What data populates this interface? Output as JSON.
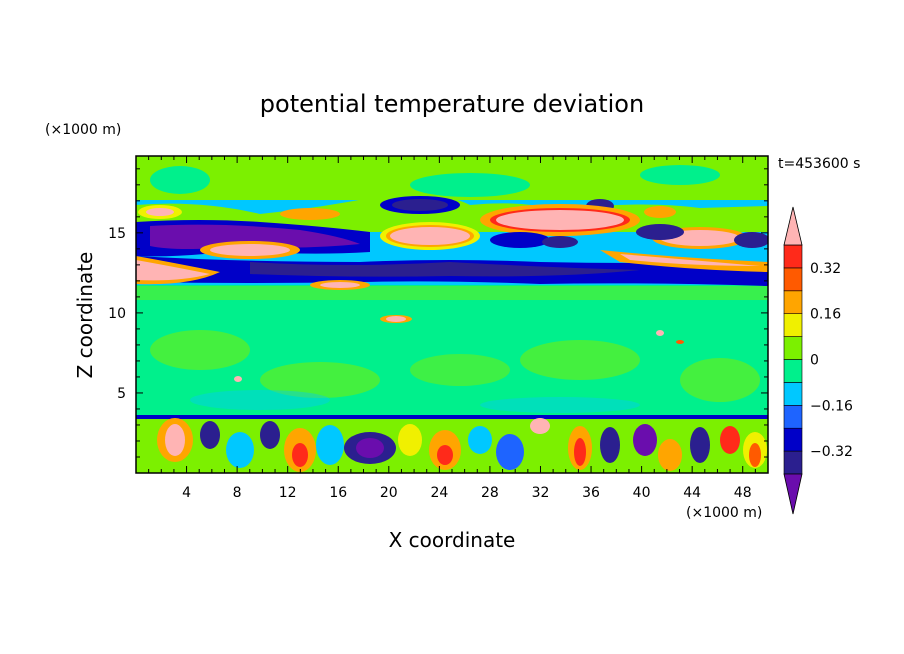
{
  "chart_data": {
    "type": "heatmap",
    "title": "potential temperature deviation",
    "xlabel": "X coordinate",
    "ylabel": "Z coordinate",
    "x_unit": "(×1000 m)",
    "y_unit": "(×1000 m)",
    "time_label": "t=453600 s",
    "xlim": [
      0,
      50
    ],
    "ylim": [
      0,
      19.8
    ],
    "x_ticks": [
      4,
      8,
      12,
      16,
      20,
      24,
      28,
      32,
      36,
      40,
      44,
      48
    ],
    "y_ticks": [
      5,
      10,
      15
    ],
    "colorbar": {
      "levels": [
        -0.48,
        -0.4,
        -0.32,
        -0.24,
        -0.16,
        -0.08,
        0,
        0.08,
        0.16,
        0.24,
        0.32,
        0.4,
        0.48
      ],
      "tick_labels": [
        "0.32",
        "0.16",
        "0",
        "−0.16",
        "−0.32"
      ],
      "tick_values": [
        0.32,
        0.16,
        0,
        -0.16,
        -0.32
      ],
      "colors": [
        "#6a0dad",
        "#2b1f8f",
        "#0000c8",
        "#1e64ff",
        "#00c8ff",
        "#00f08c",
        "#7cf000",
        "#f0f000",
        "#ffa500",
        "#ff5a00",
        "#ff2a1a",
        "#ffb4b4"
      ]
    },
    "layers": [
      {
        "z_range": [
          17,
          19.8
        ],
        "dominant": "0 to 0.08"
      },
      {
        "z_range": [
          12,
          17
        ],
        "dominant": "alternating strong positive (pink) and negative (purple/blue) bands"
      },
      {
        "z_range": [
          3.5,
          12
        ],
        "dominant": "-0.08 to 0.08"
      },
      {
        "z_range": [
          0,
          3.5
        ],
        "dominant": "strong mixed cells, -0.48 to 0.48"
      }
    ]
  }
}
